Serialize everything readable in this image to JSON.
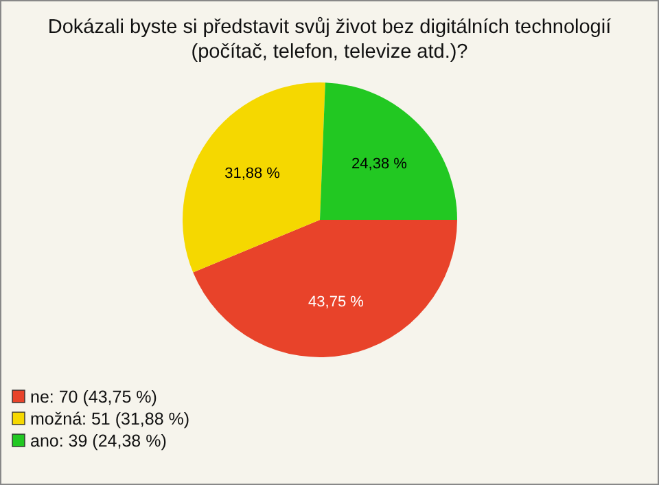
{
  "chart_data": {
    "type": "pie",
    "title": "Dokázali byste si představit svůj život bez digitálních technologií (počítač, telefon, televize atd.)?",
    "categories": [
      "ne: 70 (43,75 %)",
      "možná: 51 (31,88 %)",
      "ano: 39 (24,38 %)"
    ],
    "values": [
      43.75,
      31.88,
      24.38
    ],
    "colors": [
      "#e8432a",
      "#f5d800",
      "#22c822"
    ],
    "value_labels": [
      "43,75 %",
      "31,88 %",
      "24,38 %"
    ],
    "legend": "bottom left"
  }
}
